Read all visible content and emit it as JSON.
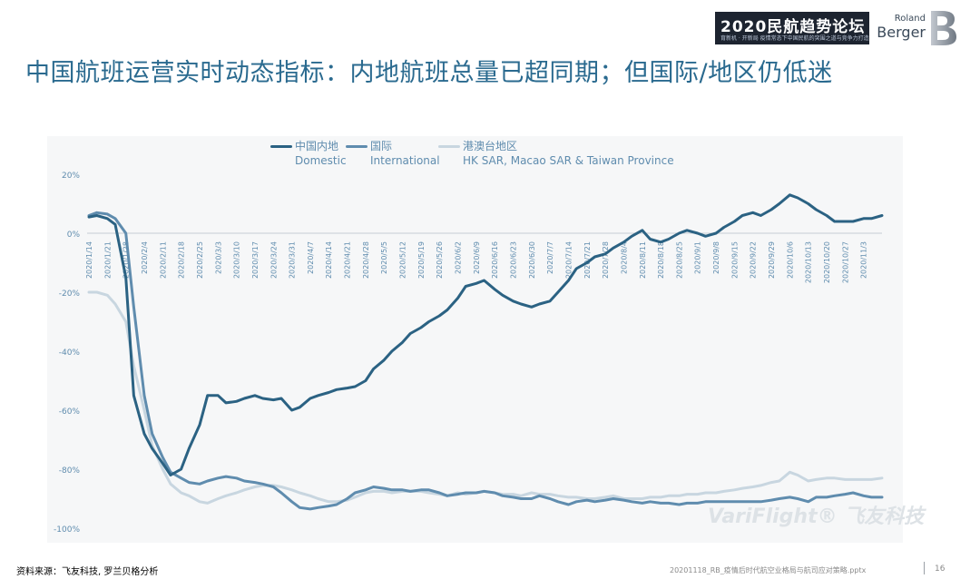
{
  "slide": {
    "title": "中国航班运营实时动态指标：内地航班总量已超同期；但国际/地区仍低迷",
    "source": "资料来源：飞友科技, 罗兰贝格分析",
    "file": "20201118_RB_疫情后时代航空业格局与航司应对策略.pptx",
    "page": "16"
  },
  "header": {
    "forum_title": "2020民航趋势论坛",
    "forum_subtitle": "育新机 · 开新局  疫情常态下中国民航的突围之道与竞争力打造",
    "brand_top": "Roland",
    "brand_bottom": "Berger"
  },
  "watermark": "VariFlight® 飞友科技",
  "colors": {
    "domestic": "#2b6283",
    "international": "#5f8cae",
    "hkmt": "#c8d6e0",
    "title": "#2a6a8f"
  },
  "chart_data": {
    "type": "line",
    "title": "",
    "xlabel": "",
    "ylabel": "",
    "ylim": [
      -100,
      20
    ],
    "grid": false,
    "legend_position": "top",
    "x_ticks": [
      "2020/1/14",
      "2020/1/21",
      "2020/1/28",
      "2020/2/4",
      "2020/2/11",
      "2020/2/18",
      "2020/2/25",
      "2020/3/3",
      "2020/3/10",
      "2020/3/17",
      "2020/3/24",
      "2020/3/31",
      "2020/4/7",
      "2020/4/14",
      "2020/4/21",
      "2020/4/28",
      "2020/5/5",
      "2020/5/12",
      "2020/5/19",
      "2020/5/26",
      "2020/6/2",
      "2020/6/9",
      "2020/6/16",
      "2020/6/23",
      "2020/6/30",
      "2020/7/7",
      "2020/7/14",
      "2020/7/21",
      "2020/7/28",
      "2020/8/4",
      "2020/8/11",
      "2020/8/18",
      "2020/8/25",
      "2020/9/1",
      "2020/9/8",
      "2020/9/15",
      "2020/9/22",
      "2020/9/29",
      "2020/10/6",
      "2020/10/13",
      "2020/10/20",
      "2020/10/27",
      "2020/11/3"
    ],
    "y_ticks": [
      "20%",
      "0%",
      "-20%",
      "-40%",
      "-60%",
      "-80%",
      "-100%"
    ],
    "y_tick_values": [
      20,
      0,
      -20,
      -40,
      -60,
      -80,
      -100
    ],
    "series": [
      {
        "key": "domestic",
        "name": "中国内地",
        "name_en": "Domestic",
        "x": [
          "2020/1/14",
          "2020/1/17",
          "2020/1/21",
          "2020/1/24",
          "2020/1/28",
          "2020/1/31",
          "2020/2/4",
          "2020/2/7",
          "2020/2/11",
          "2020/2/14",
          "2020/2/18",
          "2020/2/21",
          "2020/2/25",
          "2020/2/28",
          "2020/3/3",
          "2020/3/6",
          "2020/3/10",
          "2020/3/13",
          "2020/3/17",
          "2020/3/20",
          "2020/3/24",
          "2020/3/27",
          "2020/3/31",
          "2020/4/3",
          "2020/4/7",
          "2020/4/10",
          "2020/4/14",
          "2020/4/17",
          "2020/4/21",
          "2020/4/24",
          "2020/4/28",
          "2020/5/1",
          "2020/5/5",
          "2020/5/8",
          "2020/5/12",
          "2020/5/15",
          "2020/5/19",
          "2020/5/22",
          "2020/5/26",
          "2020/5/29",
          "2020/6/2",
          "2020/6/5",
          "2020/6/9",
          "2020/6/12",
          "2020/6/16",
          "2020/6/19",
          "2020/6/23",
          "2020/6/26",
          "2020/6/30",
          "2020/7/3",
          "2020/7/7",
          "2020/7/10",
          "2020/7/14",
          "2020/7/17",
          "2020/7/21",
          "2020/7/24",
          "2020/7/28",
          "2020/7/31",
          "2020/8/4",
          "2020/8/7",
          "2020/8/11",
          "2020/8/14",
          "2020/8/18",
          "2020/8/21",
          "2020/8/25",
          "2020/8/28",
          "2020/9/1",
          "2020/9/4",
          "2020/9/8",
          "2020/9/11",
          "2020/9/15",
          "2020/9/18",
          "2020/9/22",
          "2020/9/25",
          "2020/9/29",
          "2020/10/2",
          "2020/10/6",
          "2020/10/9",
          "2020/10/13",
          "2020/10/16",
          "2020/10/20",
          "2020/10/23",
          "2020/10/27",
          "2020/10/30",
          "2020/11/3",
          "2020/11/6",
          "2020/11/10"
        ],
        "values": [
          5.5,
          6,
          5,
          3,
          -15,
          -55,
          -68,
          -73,
          -78,
          -82,
          -80,
          -73,
          -65,
          -55,
          -55,
          -57.5,
          -57,
          -56,
          -55,
          -56,
          -56.5,
          -56,
          -60,
          -59,
          -56,
          -55,
          -54,
          -53,
          -52.5,
          -52,
          -50,
          -46,
          -43,
          -40,
          -37,
          -34,
          -32,
          -30,
          -28,
          -26,
          -22,
          -18,
          -17,
          -16,
          -19,
          -21,
          -23,
          -24,
          -25,
          -24,
          -23,
          -20,
          -16,
          -12,
          -10,
          -8,
          -7,
          -5,
          -3,
          -1,
          1,
          -2,
          -3,
          -2,
          0,
          1,
          0,
          -1,
          0,
          2,
          4,
          6,
          7,
          6,
          8,
          10,
          13,
          12,
          10,
          8,
          6,
          4,
          4,
          4,
          5,
          5,
          6
        ]
      },
      {
        "key": "international",
        "name": "国际",
        "name_en": "International",
        "x": [
          "2020/1/14",
          "2020/1/17",
          "2020/1/21",
          "2020/1/24",
          "2020/1/28",
          "2020/1/31",
          "2020/2/4",
          "2020/2/7",
          "2020/2/11",
          "2020/2/14",
          "2020/2/18",
          "2020/2/21",
          "2020/2/25",
          "2020/2/28",
          "2020/3/3",
          "2020/3/6",
          "2020/3/10",
          "2020/3/13",
          "2020/3/17",
          "2020/3/20",
          "2020/3/24",
          "2020/3/27",
          "2020/3/31",
          "2020/4/3",
          "2020/4/7",
          "2020/4/10",
          "2020/4/14",
          "2020/4/17",
          "2020/4/21",
          "2020/4/24",
          "2020/4/28",
          "2020/5/1",
          "2020/5/5",
          "2020/5/8",
          "2020/5/12",
          "2020/5/15",
          "2020/5/19",
          "2020/5/22",
          "2020/5/26",
          "2020/5/29",
          "2020/6/2",
          "2020/6/5",
          "2020/6/9",
          "2020/6/12",
          "2020/6/16",
          "2020/6/19",
          "2020/6/23",
          "2020/6/26",
          "2020/6/30",
          "2020/7/3",
          "2020/7/7",
          "2020/7/10",
          "2020/7/14",
          "2020/7/17",
          "2020/7/21",
          "2020/7/24",
          "2020/7/28",
          "2020/7/31",
          "2020/8/4",
          "2020/8/7",
          "2020/8/11",
          "2020/8/14",
          "2020/8/18",
          "2020/8/21",
          "2020/8/25",
          "2020/8/28",
          "2020/9/1",
          "2020/9/4",
          "2020/9/8",
          "2020/9/11",
          "2020/9/15",
          "2020/9/18",
          "2020/9/22",
          "2020/9/25",
          "2020/9/29",
          "2020/10/2",
          "2020/10/6",
          "2020/10/9",
          "2020/10/13",
          "2020/10/16",
          "2020/10/20",
          "2020/10/23",
          "2020/10/27",
          "2020/10/30",
          "2020/11/3",
          "2020/11/6",
          "2020/11/10"
        ],
        "values": [
          6,
          7,
          6.5,
          5,
          0,
          -25,
          -55,
          -68,
          -76,
          -81,
          -83,
          -84.5,
          -85,
          -84,
          -83,
          -82.5,
          -83,
          -84,
          -84.5,
          -85,
          -86,
          -88,
          -91,
          -93,
          -93.5,
          -93,
          -92.5,
          -92,
          -90,
          -88,
          -87,
          -86,
          -86.5,
          -87,
          -87,
          -87.5,
          -87,
          -87,
          -88,
          -89,
          -88.5,
          -88,
          -88,
          -87.5,
          -88,
          -89,
          -89.5,
          -90,
          -90,
          -89,
          -90,
          -91,
          -92,
          -91,
          -90.5,
          -91,
          -90.5,
          -90,
          -90.5,
          -91,
          -91.5,
          -91,
          -91.5,
          -91.5,
          -92,
          -91.5,
          -91.5,
          -91,
          -91,
          -91,
          -91,
          -91,
          -91,
          -91,
          -90.5,
          -90,
          -89.5,
          -90,
          -91,
          -89.5,
          -89.5,
          -89,
          -88.5,
          -88,
          -89,
          -89.5,
          -89.5
        ]
      },
      {
        "key": "hkmt",
        "name": "港澳台地区",
        "name_en": "HK SAR, Macao SAR & Taiwan Province",
        "x": [
          "2020/1/14",
          "2020/1/17",
          "2020/1/21",
          "2020/1/24",
          "2020/1/28",
          "2020/1/31",
          "2020/2/4",
          "2020/2/7",
          "2020/2/11",
          "2020/2/14",
          "2020/2/18",
          "2020/2/21",
          "2020/2/25",
          "2020/2/28",
          "2020/3/3",
          "2020/3/6",
          "2020/3/10",
          "2020/3/13",
          "2020/3/17",
          "2020/3/20",
          "2020/3/24",
          "2020/3/27",
          "2020/3/31",
          "2020/4/3",
          "2020/4/7",
          "2020/4/10",
          "2020/4/14",
          "2020/4/17",
          "2020/4/21",
          "2020/4/24",
          "2020/4/28",
          "2020/5/1",
          "2020/5/5",
          "2020/5/8",
          "2020/5/12",
          "2020/5/15",
          "2020/5/19",
          "2020/5/22",
          "2020/5/26",
          "2020/5/29",
          "2020/6/2",
          "2020/6/5",
          "2020/6/9",
          "2020/6/12",
          "2020/6/16",
          "2020/6/19",
          "2020/6/23",
          "2020/6/26",
          "2020/6/30",
          "2020/7/3",
          "2020/7/7",
          "2020/7/10",
          "2020/7/14",
          "2020/7/17",
          "2020/7/21",
          "2020/7/24",
          "2020/7/28",
          "2020/7/31",
          "2020/8/4",
          "2020/8/7",
          "2020/8/11",
          "2020/8/14",
          "2020/8/18",
          "2020/8/21",
          "2020/8/25",
          "2020/8/28",
          "2020/9/1",
          "2020/9/4",
          "2020/9/8",
          "2020/9/11",
          "2020/9/15",
          "2020/9/18",
          "2020/9/22",
          "2020/9/25",
          "2020/9/29",
          "2020/10/2",
          "2020/10/6",
          "2020/10/9",
          "2020/10/13",
          "2020/10/16",
          "2020/10/20",
          "2020/10/23",
          "2020/10/27",
          "2020/10/30",
          "2020/11/3",
          "2020/11/6",
          "2020/11/10"
        ],
        "values": [
          -20,
          -20,
          -21,
          -24,
          -30,
          -45,
          -60,
          -72,
          -80,
          -85,
          -88,
          -89,
          -91,
          -91.5,
          -90,
          -89,
          -88,
          -87,
          -86,
          -85.5,
          -85.5,
          -86,
          -87,
          -88,
          -89,
          -90,
          -91,
          -91,
          -90.5,
          -89.5,
          -88,
          -87.5,
          -87.5,
          -88,
          -87.5,
          -87.5,
          -87.5,
          -88,
          -88.5,
          -89,
          -88,
          -88.5,
          -88,
          -87.5,
          -88,
          -88.5,
          -88.5,
          -89,
          -88,
          -88.5,
          -88.5,
          -89,
          -89.5,
          -89.5,
          -90,
          -90,
          -89.5,
          -89,
          -90,
          -90,
          -90,
          -89.5,
          -89.5,
          -89,
          -89,
          -88.5,
          -88.5,
          -88,
          -88,
          -87.5,
          -87,
          -86.5,
          -86,
          -85.5,
          -84.5,
          -84,
          -81,
          -82,
          -84,
          -83.5,
          -83,
          -83,
          -83.5,
          -83.5,
          -83.5,
          -83.5,
          -83
        ]
      }
    ]
  }
}
